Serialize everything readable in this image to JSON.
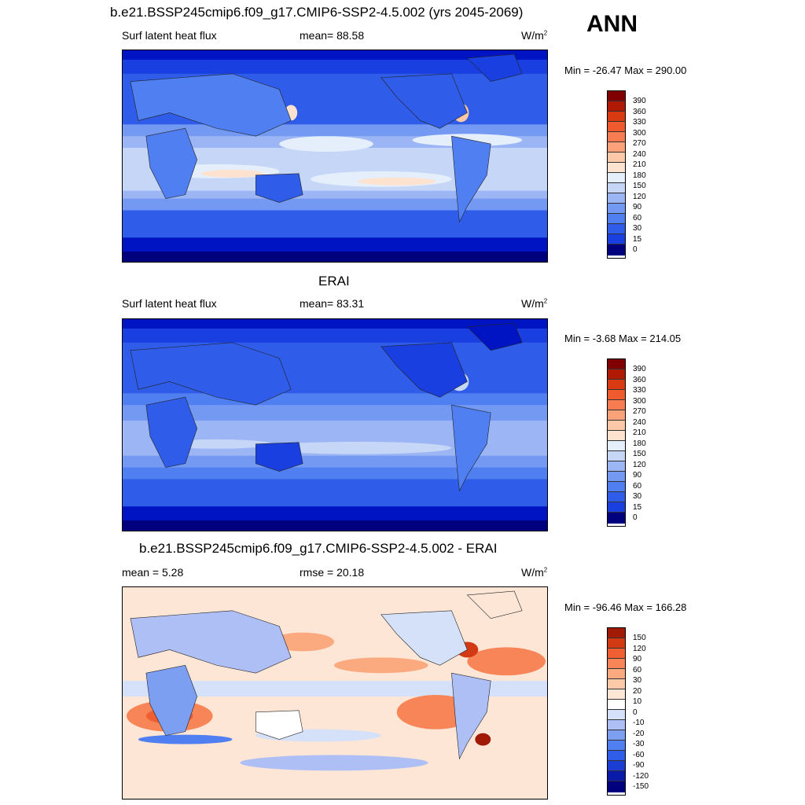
{
  "season": "ANN",
  "colors": {
    "abs_scale": [
      "#00007f",
      "#0014c4",
      "#1a3fe0",
      "#2f5ce8",
      "#4f7ff0",
      "#7499f2",
      "#9cb5f5",
      "#c6d6f7",
      "#e5eefb",
      "#fde3cf",
      "#fcc8a8",
      "#fba27b",
      "#f87c52",
      "#f05a2f",
      "#d93a12",
      "#b01a05",
      "#800000"
    ],
    "diff_scale": [
      "#00007f",
      "#0a1aa8",
      "#1b3dd3",
      "#2f5ce8",
      "#4f7ff0",
      "#7d9ff2",
      "#aebff6",
      "#d4e1f9",
      "#ffffff",
      "#fde6d6",
      "#fccaa8",
      "#fbaa80",
      "#f78558",
      "#ef5f32",
      "#d23a14",
      "#a01a05"
    ]
  },
  "panels": [
    {
      "title": "b.e21.BSSP245cmip6.f09_g17.CMIP6-SSP2-4.5.002 (yrs 2045-2069)",
      "left_label": "Surf latent heat flux",
      "center_label": "mean=  88.58",
      "units": "W/m",
      "units_sup": "2",
      "minmax": "Min = -26.47 Max = 290.00",
      "colorbar_labels": [
        "390",
        "360",
        "330",
        "300",
        "270",
        "240",
        "210",
        "180",
        "150",
        "120",
        "90",
        "60",
        "30",
        "15",
        "0"
      ]
    },
    {
      "title": "ERAI",
      "left_label": "Surf latent heat flux",
      "center_label": "mean=  83.31",
      "units": "W/m",
      "units_sup": "2",
      "minmax": "Min =  -3.68 Max = 214.05",
      "colorbar_labels": [
        "390",
        "360",
        "330",
        "300",
        "270",
        "240",
        "210",
        "180",
        "150",
        "120",
        "90",
        "60",
        "30",
        "15",
        "0"
      ]
    },
    {
      "title": "b.e21.BSSP245cmip6.f09_g17.CMIP6-SSP2-4.5.002 - ERAI",
      "left_label": "mean =   5.28",
      "center_label": "rmse =  20.18",
      "units": "W/m",
      "units_sup": "2",
      "minmax": "Min = -96.46 Max = 166.28",
      "colorbar_labels": [
        "150",
        "120",
        "90",
        "60",
        "30",
        "20",
        "10",
        "0",
        "-10",
        "-20",
        "-30",
        "-60",
        "-90",
        "-120",
        "-150"
      ]
    }
  ]
}
